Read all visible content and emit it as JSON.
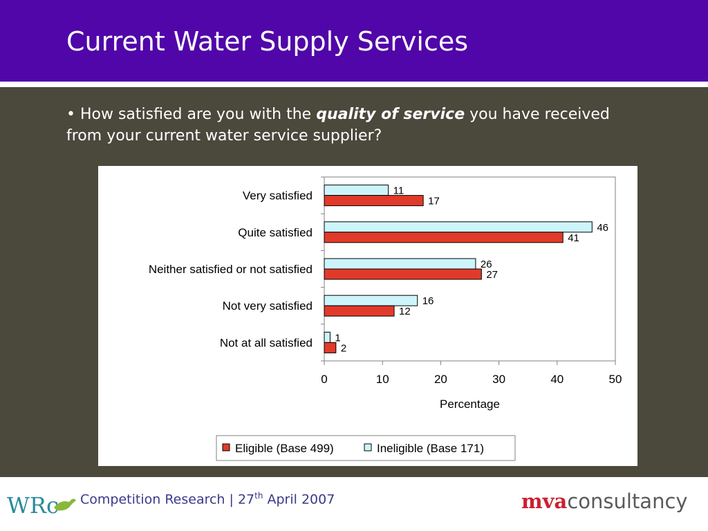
{
  "slide": {
    "title": "Current Water Supply Services",
    "question_prefix": "• How satisfied are you with the ",
    "question_bold": "quality of service",
    "question_suffix": " you have received from your current water service supplier?"
  },
  "footer": {
    "text_before_sup": "Competition Research | 27",
    "sup": "th",
    "text_after_sup": " April 2007",
    "logo_left": "WRc",
    "brand_part1": "mva",
    "brand_part2": "consultancy"
  },
  "colors": {
    "header_bg": "#5006a8",
    "panel_bg": "#4b483c",
    "eligible": "#e23a2a",
    "ineligible": "#ccf5fb"
  },
  "chart_data": {
    "type": "bar",
    "orientation": "horizontal",
    "categories": [
      "Very satisfied",
      "Quite satisfied",
      "Neither satisfied or not satisfied",
      "Not very satisfied",
      "Not at all satisfied"
    ],
    "series": [
      {
        "name": "Ineligible (Base 171)",
        "values": [
          11,
          46,
          26,
          16,
          1
        ],
        "color": "#ccf5fb"
      },
      {
        "name": "Eligible (Base 499)",
        "values": [
          17,
          41,
          27,
          12,
          2
        ],
        "color": "#e23a2a"
      }
    ],
    "xlabel": "Percentage",
    "xlim": [
      0,
      50
    ],
    "xticks": [
      0,
      10,
      20,
      30,
      40,
      50
    ],
    "legend": [
      "Eligible (Base 499)",
      "Ineligible (Base 171)"
    ],
    "legend_position": "bottom",
    "grid": false
  }
}
